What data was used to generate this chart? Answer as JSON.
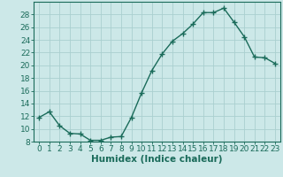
{
  "x": [
    0,
    1,
    2,
    3,
    4,
    5,
    6,
    7,
    8,
    9,
    10,
    11,
    12,
    13,
    14,
    15,
    16,
    17,
    18,
    19,
    20,
    21,
    22,
    23
  ],
  "y": [
    11.8,
    12.7,
    10.5,
    9.3,
    9.2,
    8.2,
    8.2,
    8.7,
    8.8,
    11.8,
    15.7,
    19.2,
    21.8,
    23.8,
    25.0,
    26.5,
    28.3,
    28.3,
    29.0,
    26.8,
    24.5,
    21.3,
    21.2,
    20.3
  ],
  "line_color": "#1a6b5a",
  "marker": "+",
  "marker_size": 4,
  "marker_linewidth": 1.0,
  "line_width": 1.0,
  "bg_color": "#cce8e8",
  "grid_color": "#aacfcf",
  "xlabel": "Humidex (Indice chaleur)",
  "ylim": [
    8,
    30
  ],
  "xlim": [
    -0.5,
    23.5
  ],
  "yticks": [
    8,
    10,
    12,
    14,
    16,
    18,
    20,
    22,
    24,
    26,
    28
  ],
  "xticks": [
    0,
    1,
    2,
    3,
    4,
    5,
    6,
    7,
    8,
    9,
    10,
    11,
    12,
    13,
    14,
    15,
    16,
    17,
    18,
    19,
    20,
    21,
    22,
    23
  ],
  "tick_label_fontsize": 6.5,
  "xlabel_fontsize": 7.5
}
